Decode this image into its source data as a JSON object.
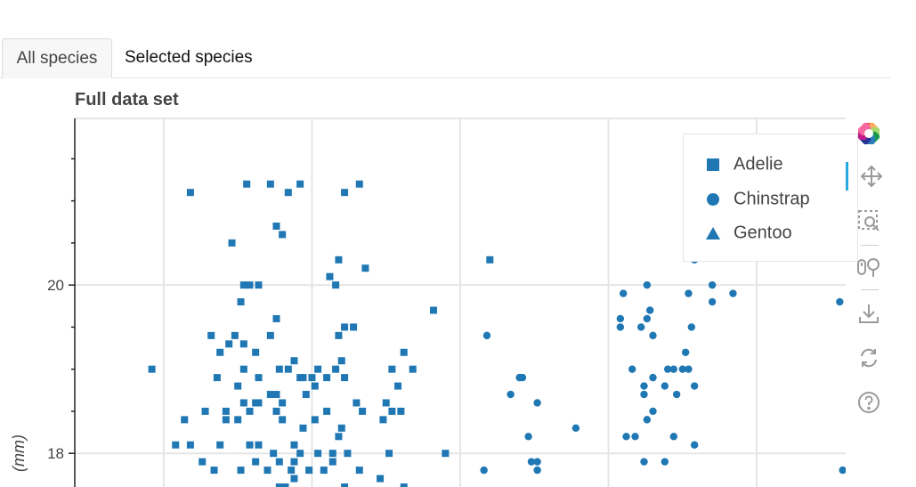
{
  "tabs": [
    {
      "label": "All species",
      "active": true
    },
    {
      "label": "Selected species",
      "active": false
    }
  ],
  "colors": {
    "marker": "#1f77b4",
    "grid": "#e5e5e5",
    "axis": "#222222",
    "text": "#444444",
    "tool": "#9a9a9a",
    "tool_active": "#26aae1"
  },
  "toolbar": {
    "tools": [
      {
        "name": "bokeh-logo-icon",
        "active": false
      },
      {
        "name": "pan-icon",
        "active": true
      },
      {
        "name": "box-zoom-icon",
        "active": false
      },
      {
        "name": "wheel-zoom-icon",
        "active": false
      },
      {
        "name": "save-icon",
        "active": false
      },
      {
        "name": "reset-icon",
        "active": false
      },
      {
        "name": "help-icon",
        "active": false
      }
    ]
  },
  "chart_data": {
    "type": "scatter",
    "title": "Full data set",
    "ylabel": "(mm)",
    "xlabel": "",
    "ylim": [
      17.6,
      21.98
    ],
    "y_ticks": [
      18,
      20
    ],
    "xlim": [
      32.0,
      58.0
    ],
    "grid": true,
    "legend": {
      "placement": "top-right",
      "entries": [
        {
          "label": "Adelie",
          "marker": "square"
        },
        {
          "label": "Chinstrap",
          "marker": "circle"
        },
        {
          "label": "Gentoo",
          "marker": "triangle"
        }
      ]
    },
    "series": [
      {
        "name": "Adelie",
        "marker": "square",
        "points": [
          [
            35.9,
            21.1
          ],
          [
            37.8,
            21.2
          ],
          [
            38.6,
            21.2
          ],
          [
            39.2,
            21.1
          ],
          [
            39.6,
            21.2
          ],
          [
            41.1,
            21.1
          ],
          [
            41.6,
            21.2
          ],
          [
            38.8,
            20.7
          ],
          [
            39.0,
            20.6
          ],
          [
            37.3,
            20.5
          ],
          [
            40.9,
            20.3
          ],
          [
            46.0,
            20.3
          ],
          [
            41.8,
            20.2
          ],
          [
            40.6,
            20.1
          ],
          [
            37.7,
            20.0
          ],
          [
            38.2,
            20.0
          ],
          [
            37.9,
            20.0
          ],
          [
            40.8,
            20.0
          ],
          [
            37.6,
            19.8
          ],
          [
            38.8,
            19.6
          ],
          [
            44.1,
            19.7
          ],
          [
            36.6,
            19.4
          ],
          [
            37.4,
            19.4
          ],
          [
            41.1,
            19.5
          ],
          [
            41.4,
            19.5
          ],
          [
            40.9,
            19.4
          ],
          [
            37.2,
            19.3
          ],
          [
            38.6,
            19.4
          ],
          [
            37.7,
            19.3
          ],
          [
            36.9,
            19.2
          ],
          [
            39.4,
            19.1
          ],
          [
            41.0,
            19.1
          ],
          [
            38.1,
            19.2
          ],
          [
            43.1,
            19.2
          ],
          [
            34.6,
            19.0
          ],
          [
            37.7,
            19.0
          ],
          [
            38.9,
            19.0
          ],
          [
            39.2,
            19.0
          ],
          [
            39.6,
            18.9
          ],
          [
            40.2,
            19.0
          ],
          [
            40.8,
            19.0
          ],
          [
            42.7,
            19.0
          ],
          [
            36.8,
            18.9
          ],
          [
            38.2,
            18.9
          ],
          [
            39.7,
            18.9
          ],
          [
            41.1,
            18.9
          ],
          [
            43.4,
            19.0
          ],
          [
            37.5,
            18.8
          ],
          [
            38.8,
            18.7
          ],
          [
            40.0,
            18.9
          ],
          [
            40.5,
            18.9
          ],
          [
            40.1,
            18.8
          ],
          [
            42.9,
            18.8
          ],
          [
            37.7,
            18.6
          ],
          [
            38.6,
            18.7
          ],
          [
            39.8,
            18.7
          ],
          [
            38.1,
            18.6
          ],
          [
            38.2,
            18.6
          ],
          [
            39.0,
            18.6
          ],
          [
            41.5,
            18.6
          ],
          [
            42.5,
            18.6
          ],
          [
            36.4,
            18.5
          ],
          [
            37.1,
            18.5
          ],
          [
            37.9,
            18.5
          ],
          [
            38.8,
            18.5
          ],
          [
            40.5,
            18.5
          ],
          [
            41.7,
            18.5
          ],
          [
            42.7,
            18.5
          ],
          [
            43.0,
            18.5
          ],
          [
            35.7,
            18.4
          ],
          [
            37.1,
            18.4
          ],
          [
            37.5,
            18.4
          ],
          [
            39.0,
            18.4
          ],
          [
            40.1,
            18.4
          ],
          [
            41.0,
            18.3
          ],
          [
            42.4,
            18.4
          ],
          [
            39.7,
            18.3
          ],
          [
            40.9,
            18.2
          ],
          [
            36.9,
            18.1
          ],
          [
            37.9,
            18.1
          ],
          [
            38.2,
            18.1
          ],
          [
            39.4,
            18.1
          ],
          [
            41.2,
            18.0
          ],
          [
            42.6,
            18.0
          ],
          [
            35.4,
            18.1
          ],
          [
            35.9,
            18.1
          ],
          [
            38.7,
            18.0
          ],
          [
            39.6,
            18.0
          ],
          [
            40.2,
            18.0
          ],
          [
            40.7,
            18.0
          ],
          [
            44.5,
            18.0
          ],
          [
            36.3,
            17.9
          ],
          [
            38.1,
            17.9
          ],
          [
            38.9,
            17.9
          ],
          [
            39.4,
            17.9
          ],
          [
            40.7,
            17.9
          ],
          [
            36.7,
            17.8
          ],
          [
            37.6,
            17.8
          ],
          [
            38.5,
            17.8
          ],
          [
            39.3,
            17.8
          ],
          [
            39.9,
            17.8
          ],
          [
            40.4,
            17.8
          ],
          [
            41.6,
            17.8
          ],
          [
            39.4,
            17.7
          ],
          [
            42.3,
            17.7
          ],
          [
            38.9,
            17.6
          ],
          [
            39.1,
            17.6
          ],
          [
            41.1,
            17.6
          ],
          [
            43.1,
            17.6
          ]
        ]
      },
      {
        "name": "Chinstrap",
        "marker": "circle",
        "points": [
          [
            55.3,
            20.8
          ],
          [
            53.5,
            20.7
          ],
          [
            52.9,
            20.3
          ],
          [
            45.9,
            19.4
          ],
          [
            47.0,
            18.9
          ],
          [
            47.1,
            18.9
          ],
          [
            46.7,
            18.7
          ],
          [
            47.6,
            18.6
          ],
          [
            48.9,
            18.3
          ],
          [
            47.3,
            18.2
          ],
          [
            50.5,
            19.9
          ],
          [
            51.3,
            20.0
          ],
          [
            52.7,
            19.9
          ],
          [
            53.5,
            20.0
          ],
          [
            54.2,
            19.9
          ],
          [
            53.5,
            19.8
          ],
          [
            57.8,
            19.8
          ],
          [
            50.4,
            19.6
          ],
          [
            50.4,
            19.5
          ],
          [
            51.4,
            19.7
          ],
          [
            51.3,
            19.6
          ],
          [
            51.1,
            19.5
          ],
          [
            51.5,
            19.4
          ],
          [
            52.8,
            19.5
          ],
          [
            52.6,
            19.2
          ],
          [
            51.5,
            18.9
          ],
          [
            50.8,
            19.0
          ],
          [
            52.2,
            19.0
          ],
          [
            52.5,
            19.0
          ],
          [
            52.0,
            19.0
          ],
          [
            52.7,
            19.0
          ],
          [
            51.2,
            18.8
          ],
          [
            51.9,
            18.8
          ],
          [
            52.3,
            18.7
          ],
          [
            52.9,
            18.8
          ],
          [
            51.2,
            18.7
          ],
          [
            51.5,
            18.5
          ],
          [
            51.3,
            18.4
          ],
          [
            50.6,
            18.2
          ],
          [
            50.9,
            18.2
          ],
          [
            52.2,
            18.2
          ],
          [
            52.9,
            18.1
          ],
          [
            45.8,
            17.8
          ],
          [
            47.6,
            17.8
          ],
          [
            47.6,
            17.9
          ],
          [
            47.4,
            17.9
          ],
          [
            51.2,
            17.9
          ],
          [
            51.9,
            17.9
          ],
          [
            57.9,
            17.8
          ]
        ]
      },
      {
        "name": "Gentoo",
        "marker": "triangle",
        "points": []
      }
    ]
  }
}
